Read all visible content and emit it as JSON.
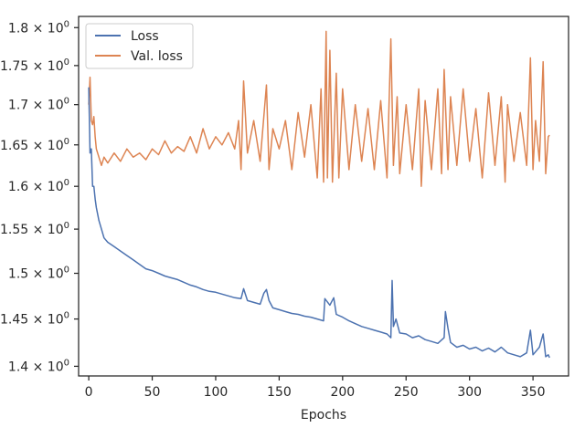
{
  "chart_data": {
    "type": "line",
    "title": "",
    "xlabel": "Epochs",
    "ylabel": "",
    "y_scale": "log",
    "xlim": [
      -8,
      378
    ],
    "ylim": [
      1.39,
      1.815
    ],
    "xticks": [
      0,
      50,
      100,
      150,
      200,
      250,
      300,
      350
    ],
    "xtick_labels": [
      "0",
      "50",
      "100",
      "150",
      "200",
      "250",
      "300",
      "350"
    ],
    "yticks": [
      1.4,
      1.45,
      1.5,
      1.55,
      1.6,
      1.65,
      1.7,
      1.75,
      1.8
    ],
    "ytick_base_labels": [
      "1.4",
      "1.45",
      "1.5",
      "1.55",
      "1.6",
      "1.65",
      "1.7",
      "1.75",
      "1.8"
    ],
    "ytick_suffix": "× 10",
    "ytick_exponent": "0",
    "grid": false,
    "legend_position": "top-left",
    "series": [
      {
        "name": "Loss",
        "color": "#4c72b0",
        "x": [
          0,
          1,
          2,
          3,
          4,
          5,
          6,
          8,
          10,
          12,
          15,
          20,
          25,
          30,
          35,
          40,
          45,
          50,
          55,
          60,
          65,
          70,
          75,
          80,
          85,
          90,
          95,
          100,
          105,
          110,
          115,
          120,
          122,
          125,
          130,
          135,
          138,
          140,
          142,
          145,
          150,
          155,
          160,
          165,
          170,
          175,
          180,
          185,
          186,
          190,
          193,
          195,
          200,
          205,
          210,
          215,
          220,
          225,
          230,
          235,
          238,
          239,
          240,
          242,
          245,
          250,
          255,
          260,
          265,
          270,
          275,
          280,
          281,
          283,
          285,
          290,
          295,
          300,
          305,
          310,
          315,
          320,
          325,
          330,
          335,
          340,
          345,
          348,
          350,
          355,
          358,
          360,
          362,
          363
        ],
        "y": [
          1.722,
          1.64,
          1.645,
          1.6,
          1.6,
          1.585,
          1.575,
          1.56,
          1.55,
          1.54,
          1.535,
          1.53,
          1.525,
          1.52,
          1.515,
          1.51,
          1.505,
          1.503,
          1.5,
          1.497,
          1.495,
          1.493,
          1.49,
          1.487,
          1.485,
          1.482,
          1.48,
          1.479,
          1.477,
          1.475,
          1.473,
          1.472,
          1.483,
          1.47,
          1.468,
          1.466,
          1.478,
          1.482,
          1.47,
          1.462,
          1.46,
          1.458,
          1.456,
          1.455,
          1.453,
          1.452,
          1.45,
          1.448,
          1.472,
          1.465,
          1.473,
          1.455,
          1.452,
          1.448,
          1.445,
          1.442,
          1.44,
          1.438,
          1.436,
          1.434,
          1.43,
          1.492,
          1.442,
          1.45,
          1.435,
          1.434,
          1.43,
          1.432,
          1.428,
          1.426,
          1.424,
          1.43,
          1.458,
          1.44,
          1.425,
          1.42,
          1.422,
          1.418,
          1.42,
          1.416,
          1.419,
          1.415,
          1.42,
          1.414,
          1.412,
          1.41,
          1.414,
          1.438,
          1.412,
          1.42,
          1.434,
          1.41,
          1.412,
          1.409
        ]
      },
      {
        "name": "Val. loss",
        "color": "#dd8452",
        "x": [
          0,
          1,
          2,
          3,
          4,
          5,
          6,
          8,
          10,
          12,
          15,
          20,
          25,
          30,
          35,
          40,
          45,
          50,
          55,
          60,
          65,
          70,
          75,
          80,
          85,
          90,
          95,
          100,
          105,
          110,
          115,
          118,
          120,
          122,
          125,
          130,
          135,
          140,
          142,
          145,
          150,
          155,
          160,
          165,
          170,
          175,
          180,
          183,
          185,
          187,
          188,
          190,
          192,
          195,
          197,
          200,
          205,
          210,
          215,
          220,
          225,
          230,
          235,
          238,
          240,
          243,
          245,
          250,
          255,
          260,
          262,
          265,
          270,
          275,
          278,
          280,
          283,
          285,
          290,
          295,
          300,
          305,
          310,
          315,
          320,
          325,
          328,
          330,
          335,
          340,
          345,
          348,
          350,
          352,
          355,
          358,
          360,
          362,
          363
        ],
        "y": [
          1.7,
          1.735,
          1.68,
          1.675,
          1.685,
          1.66,
          1.645,
          1.635,
          1.625,
          1.635,
          1.628,
          1.64,
          1.63,
          1.645,
          1.635,
          1.64,
          1.632,
          1.645,
          1.638,
          1.655,
          1.64,
          1.648,
          1.642,
          1.66,
          1.64,
          1.67,
          1.645,
          1.66,
          1.65,
          1.665,
          1.645,
          1.68,
          1.62,
          1.73,
          1.64,
          1.68,
          1.63,
          1.725,
          1.62,
          1.67,
          1.645,
          1.68,
          1.62,
          1.69,
          1.635,
          1.7,
          1.61,
          1.72,
          1.605,
          1.795,
          1.61,
          1.77,
          1.605,
          1.74,
          1.61,
          1.72,
          1.62,
          1.7,
          1.63,
          1.695,
          1.62,
          1.705,
          1.61,
          1.785,
          1.625,
          1.71,
          1.615,
          1.7,
          1.62,
          1.72,
          1.6,
          1.705,
          1.62,
          1.72,
          1.615,
          1.745,
          1.62,
          1.71,
          1.625,
          1.72,
          1.63,
          1.695,
          1.61,
          1.715,
          1.625,
          1.71,
          1.605,
          1.7,
          1.63,
          1.69,
          1.625,
          1.76,
          1.62,
          1.68,
          1.63,
          1.755,
          1.615,
          1.66,
          1.662
        ]
      }
    ]
  }
}
